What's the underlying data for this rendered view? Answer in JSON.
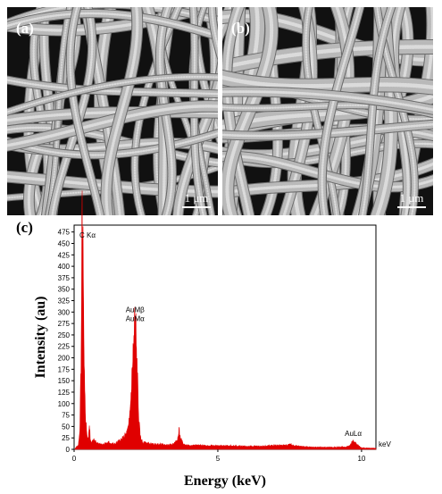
{
  "panels": [
    {
      "label": "(a)",
      "scale_bar": "1 μm"
    },
    {
      "label": "(b)",
      "scale_bar": "1 μm"
    }
  ],
  "panel_c_label": "(c)",
  "chart_data": {
    "type": "line",
    "title": "",
    "xlabel": "Energy (keV)",
    "ylabel": "Intensity (au)",
    "x_unit_label": "keV",
    "xlim": [
      0,
      10.5
    ],
    "ylim": [
      0,
      490
    ],
    "x_ticks": [
      0,
      5,
      10
    ],
    "y_ticks": [
      0,
      25,
      50,
      75,
      100,
      125,
      150,
      175,
      200,
      225,
      250,
      275,
      300,
      325,
      350,
      375,
      400,
      425,
      450,
      475
    ],
    "color": "#e00000",
    "peaks": [
      {
        "x": 0.28,
        "y": 478,
        "label": "C Kα"
      },
      {
        "x": 2.12,
        "y": 268,
        "label": "AuMβ\nAuMα"
      },
      {
        "x": 9.71,
        "y": 18,
        "label": "AuLα"
      }
    ],
    "series": [
      {
        "x": [
          0.05,
          0.15,
          0.2,
          0.25,
          0.28,
          0.31,
          0.35,
          0.4,
          0.45,
          0.5,
          0.53,
          0.56,
          0.6,
          0.7,
          0.75,
          0.8,
          0.9,
          1.0,
          1.1,
          1.2,
          1.3,
          1.4,
          1.5,
          1.6,
          1.7,
          1.8,
          1.9,
          2.0,
          2.05,
          2.1,
          2.12,
          2.15,
          2.2,
          2.25,
          2.3,
          2.4,
          2.5,
          2.7,
          3.0,
          3.3,
          3.5,
          3.6,
          3.65,
          3.7,
          3.8,
          4.0,
          4.5,
          5.0,
          5.5,
          6.0,
          6.5,
          7.0,
          7.4,
          7.5,
          7.6,
          8.0,
          8.5,
          9.0,
          9.5,
          9.6,
          9.7,
          9.8,
          9.9,
          10.0,
          10.5
        ],
        "y": [
          3,
          8,
          40,
          200,
          478,
          380,
          150,
          60,
          30,
          18,
          52,
          22,
          14,
          20,
          16,
          12,
          12,
          10,
          12,
          14,
          12,
          10,
          14,
          18,
          22,
          30,
          45,
          130,
          200,
          250,
          268,
          240,
          150,
          60,
          25,
          12,
          14,
          10,
          10,
          8,
          12,
          20,
          38,
          22,
          10,
          8,
          8,
          7,
          7,
          6,
          6,
          8,
          8,
          12,
          8,
          5,
          4,
          4,
          5,
          8,
          18,
          12,
          7,
          3,
          2
        ]
      }
    ]
  }
}
